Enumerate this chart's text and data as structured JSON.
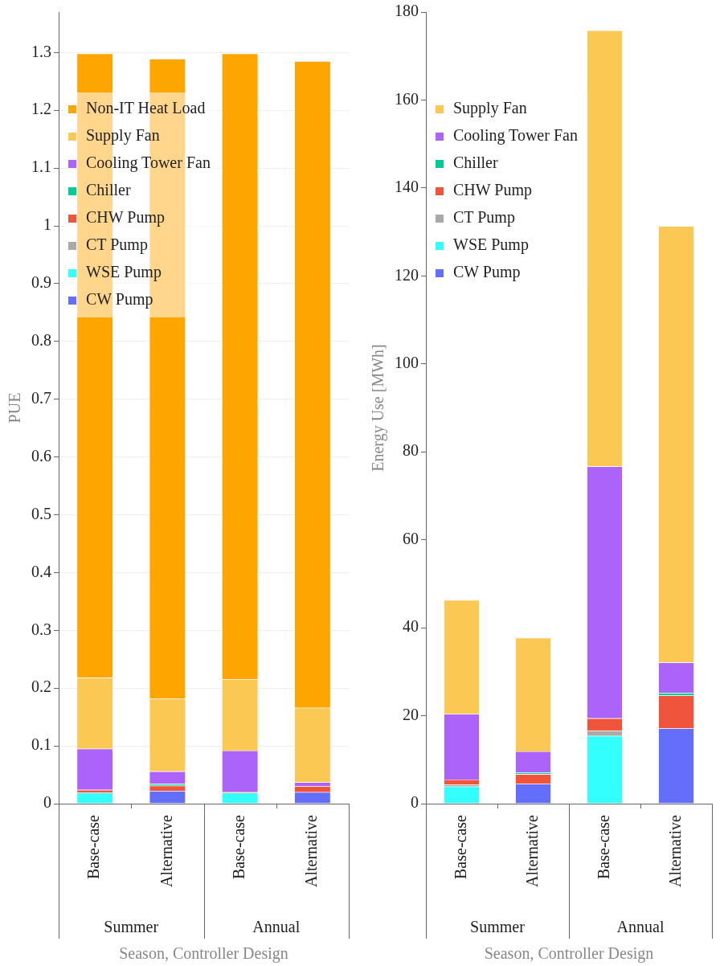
{
  "chart_data": [
    {
      "type": "bar",
      "stacked": true,
      "ylabel": "PUE",
      "xlabel": "Season, Controller Design",
      "categories": [
        "Base-case",
        "Alternative",
        "Base-case",
        "Alternative"
      ],
      "annotations": [
        "Summer",
        "Annual"
      ],
      "ylim": [
        0,
        1.37
      ],
      "yticks": [
        0,
        0.1,
        0.2,
        0.3,
        0.4,
        0.5,
        0.6,
        0.7,
        0.8,
        0.9,
        1,
        1.1,
        1.2,
        1.3
      ],
      "grid": "y",
      "legend": "top left",
      "series": [
        {
          "name": "CW Pump",
          "color": "#636efa",
          "values": [
            0,
            0.022,
            0,
            0.02
          ]
        },
        {
          "name": "WSE Pump",
          "color": "#33ffff",
          "values": [
            0.019,
            0,
            0.019,
            0
          ]
        },
        {
          "name": "CT Pump",
          "color": "#aaaaaa",
          "values": [
            null,
            0,
            null,
            null
          ]
        },
        {
          "name": "CHW Pump",
          "color": "#ef553b",
          "values": [
            0.005,
            0.009,
            0.002,
            0.01
          ]
        },
        {
          "name": "Chiller",
          "color": "#00cc96",
          "values": [
            0,
            0.003,
            0,
            0
          ]
        },
        {
          "name": "Cooling Tower Fan",
          "color": "#ab63fa",
          "values": [
            0.071,
            0.022,
            0.071,
            0.007
          ]
        },
        {
          "name": "Supply Fan",
          "color": "#fcc854",
          "values": [
            0.123,
            0.126,
            0.123,
            0.129
          ]
        },
        {
          "name": "Non-IT Heat Load",
          "color": "#ffa500",
          "values": [
            1.08,
            1.107,
            1.083,
            1.119
          ]
        }
      ]
    },
    {
      "type": "bar",
      "stacked": true,
      "ylabel": "Energy Use [MWh]",
      "xlabel": "Season, Controller Design",
      "categories": [
        "Base-case",
        "Alternative",
        "Base-case",
        "Alternative"
      ],
      "annotations": [
        "Summer",
        "Annual"
      ],
      "ylim": [
        0,
        180
      ],
      "yticks": [
        0,
        20,
        40,
        60,
        80,
        100,
        120,
        140,
        160,
        180
      ],
      "legend": "top left",
      "series": [
        {
          "name": "CW Pump",
          "color": "#636efa",
          "values": [
            0,
            4.5,
            0,
            17.1
          ]
        },
        {
          "name": "WSE Pump",
          "color": "#33ffff",
          "values": [
            3.9,
            0,
            15.4,
            0
          ]
        },
        {
          "name": "CT Pump",
          "color": "#aaaaaa",
          "values": [
            0.4,
            0,
            1.2,
            0
          ]
        },
        {
          "name": "CHW Pump",
          "color": "#ef553b",
          "values": [
            1.2,
            2.2,
            2.8,
            7.5
          ]
        },
        {
          "name": "Chiller",
          "color": "#00cc96",
          "values": [
            0,
            0.4,
            0,
            0.6
          ]
        },
        {
          "name": "Cooling Tower Fan",
          "color": "#ab63fa",
          "values": [
            14.9,
            4.8,
            57.3,
            6.9
          ]
        },
        {
          "name": "Supply Fan",
          "color": "#fcc854",
          "values": [
            25.9,
            25.8,
            99.1,
            99.2
          ]
        }
      ]
    }
  ]
}
